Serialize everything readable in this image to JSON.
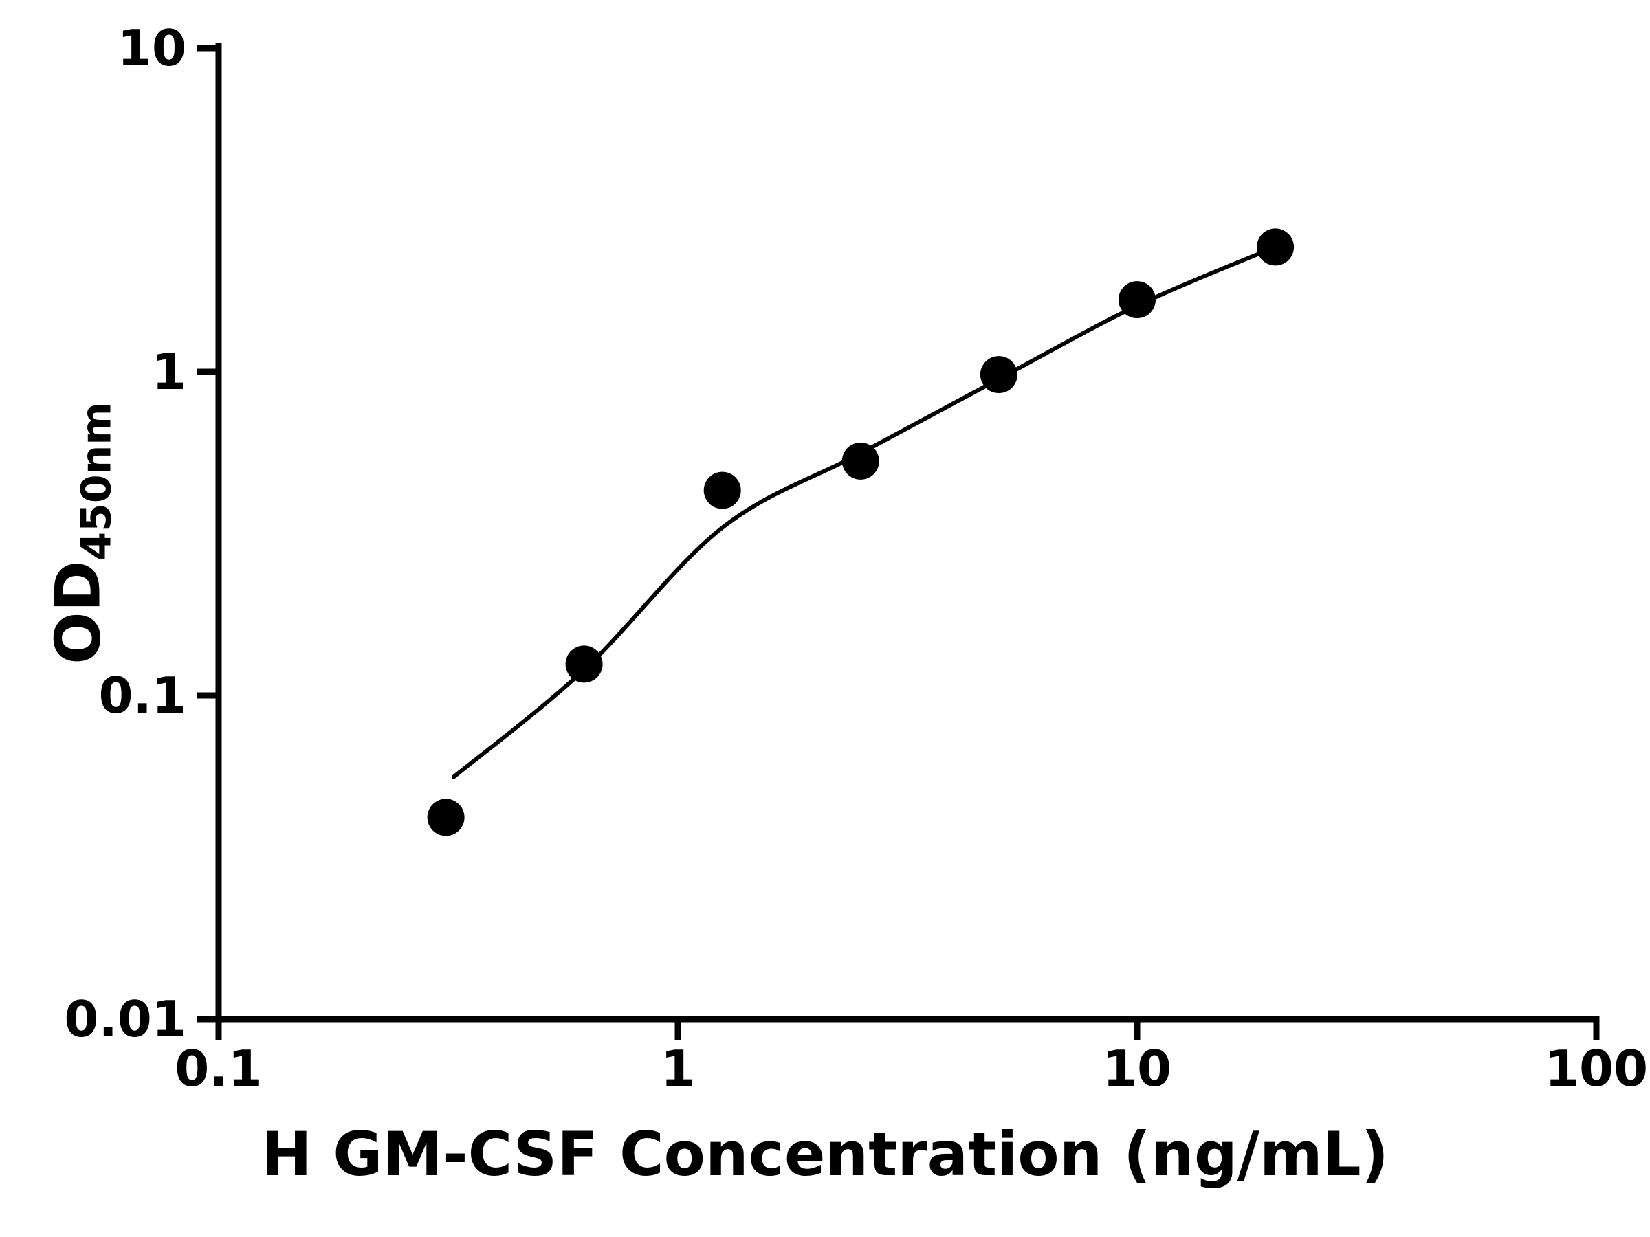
{
  "chart_data": {
    "type": "scatter",
    "title": "",
    "xlabel": "H GM-CSF Concentration (ng/mL)",
    "ylabel_main": "OD",
    "ylabel_sub": "450nm",
    "x_scale": "log",
    "y_scale": "log",
    "xlim": [
      0.1,
      100
    ],
    "ylim": [
      0.01,
      10
    ],
    "x_ticks": [
      {
        "v": 0.1,
        "label": "0.1"
      },
      {
        "v": 1,
        "label": "1"
      },
      {
        "v": 10,
        "label": "10"
      },
      {
        "v": 100,
        "label": "100"
      }
    ],
    "y_ticks": [
      {
        "v": 0.01,
        "label": "0.01"
      },
      {
        "v": 0.1,
        "label": "0.1"
      },
      {
        "v": 1,
        "label": "1"
      },
      {
        "v": 10,
        "label": "10"
      }
    ],
    "grid": false,
    "legend": false,
    "series": [
      {
        "name": "standard-data-points",
        "marker": "circle",
        "color": "#000000",
        "points": [
          [
            0.3125,
            0.042
          ],
          [
            0.625,
            0.125
          ],
          [
            1.25,
            0.43
          ],
          [
            2.5,
            0.53
          ],
          [
            5,
            0.98
          ],
          [
            10,
            1.67
          ],
          [
            20,
            2.43
          ]
        ]
      }
    ],
    "fit_curve": {
      "name": "fitted-standard-curve",
      "color": "#000000",
      "points": [
        [
          0.325,
          0.056
        ],
        [
          0.625,
          0.12
        ],
        [
          1.25,
          0.33
        ],
        [
          2.5,
          0.56
        ],
        [
          5,
          0.95
        ],
        [
          10,
          1.6
        ],
        [
          20,
          2.43
        ]
      ]
    }
  },
  "colors": {
    "background": "#ffffff",
    "foreground": "#000000"
  }
}
